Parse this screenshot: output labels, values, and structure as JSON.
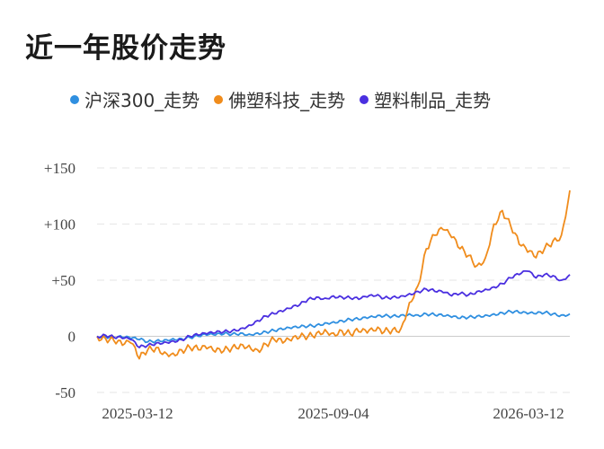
{
  "page": {
    "title": "近一年股价走势"
  },
  "chart_data": {
    "type": "line",
    "title": "近一年股价走势",
    "xlabel": "",
    "ylabel": "",
    "x_ticks": [
      "2025-03-12",
      "2025-09-04",
      "2026-03-12"
    ],
    "y_ticks": [
      "+150",
      "+100",
      "+50",
      "0",
      "-50"
    ],
    "y_tick_values": [
      150,
      100,
      50,
      0,
      -50
    ],
    "ylim": [
      -50,
      150
    ],
    "grid": "horizontal dashed",
    "legend_position": "top",
    "colors": {
      "hs300": "#2f8fe0",
      "foshu": "#f08c1c",
      "suliao": "#4a2fe0",
      "grid": "#e6e6e6",
      "zero_line": "#cccccc"
    },
    "series": [
      {
        "name": "沪深300_走势",
        "color": "#2f8fe0",
        "values": [
          0,
          0,
          -1,
          -1,
          -2,
          -3,
          -5,
          -4,
          -3,
          -2,
          -2,
          -1,
          0,
          1,
          1,
          2,
          2,
          3,
          2,
          3,
          4,
          5,
          6,
          7,
          8,
          9,
          10,
          12,
          13,
          14,
          15,
          15,
          16,
          17,
          18,
          18,
          19,
          20,
          19,
          20,
          19,
          18,
          17,
          16,
          17,
          18,
          19,
          20,
          21,
          22,
          21,
          20,
          20,
          21,
          20,
          19,
          20
        ]
      },
      {
        "name": "佛塑科技_走势",
        "color": "#f08c1c",
        "values": [
          0,
          -2,
          -4,
          -8,
          -6,
          -20,
          -12,
          -10,
          -14,
          -15,
          -12,
          -10,
          -12,
          -11,
          -14,
          -13,
          -10,
          -7,
          -8,
          -12,
          -7,
          -3,
          -6,
          -4,
          -1,
          0,
          3,
          6,
          3,
          5,
          2,
          4,
          3,
          5,
          4,
          6,
          7,
          30,
          45,
          78,
          90,
          95,
          88,
          78,
          72,
          63,
          70,
          100,
          112,
          98,
          82,
          75,
          70,
          78,
          85,
          90,
          130
        ]
      },
      {
        "name": "塑料制品_走势",
        "color": "#4a2fe0",
        "values": [
          0,
          1,
          -1,
          -2,
          -3,
          -10,
          -8,
          -6,
          -5,
          -4,
          -3,
          0,
          1,
          2,
          3,
          4,
          5,
          7,
          10,
          14,
          18,
          20,
          22,
          25,
          28,
          33,
          35,
          34,
          36,
          35,
          34,
          33,
          35,
          36,
          34,
          35,
          36,
          38,
          40,
          42,
          40,
          39,
          36,
          38,
          37,
          40,
          42,
          44,
          47,
          52,
          55,
          58,
          52,
          55,
          54,
          50,
          55
        ]
      }
    ]
  }
}
